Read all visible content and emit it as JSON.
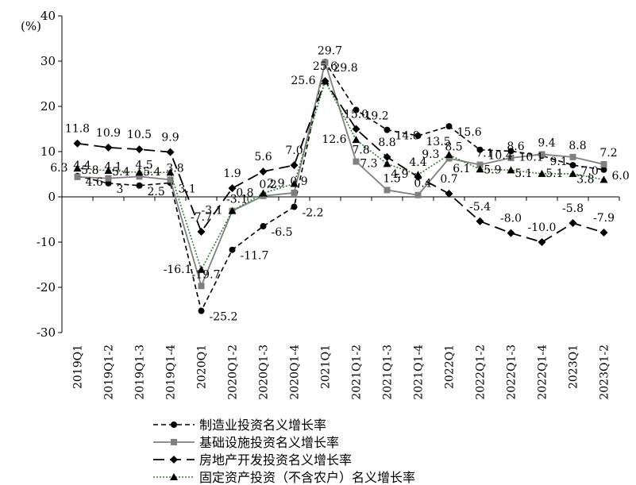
{
  "chart_data": {
    "type": "line",
    "title": "",
    "ylabel": "(%)",
    "xlabel": "",
    "ylim": [
      -30,
      40
    ],
    "yticks": [
      -30,
      -20,
      -10,
      0,
      10,
      20,
      30,
      40
    ],
    "grid": false,
    "legend_position": "bottom",
    "categories": [
      "2019Q1",
      "2019Q1-2",
      "2019Q1-3",
      "2019Q1-4",
      "2020Q1",
      "2020Q1-2",
      "2020Q1-3",
      "2020Q1-4",
      "2021Q1",
      "2021Q1-2",
      "2021Q1-3",
      "2021Q1-4",
      "2022Q1",
      "2022Q1-2",
      "2022Q1-3",
      "2022Q1-4",
      "2023Q1",
      "2023Q1-2"
    ],
    "series": [
      {
        "name": "制造业投资名义增长率",
        "style": "dashed-circle",
        "color": "#000000",
        "values": [
          4.6,
          3.0,
          2.5,
          3.1,
          -25.2,
          -11.7,
          -6.5,
          -2.2,
          29.8,
          19.2,
          14.8,
          13.5,
          15.6,
          10.4,
          10.1,
          9.1,
          7.0,
          6.0
        ],
        "labels": [
          "4.6",
          "3",
          "2.5",
          "3.1",
          "-25.2",
          "-11.7",
          "-6.5",
          "-2.2",
          "29.8",
          "19.2",
          "14.8",
          "13.5",
          "15.6",
          "10.4",
          "10.1",
          "9.1",
          "7.0",
          "6.0"
        ]
      },
      {
        "name": "基础设施投资名义增长率",
        "style": "solid-square",
        "color": "#808080",
        "values": [
          4.4,
          4.1,
          4.5,
          3.8,
          -19.7,
          -3.1,
          0.2,
          0.9,
          29.7,
          7.8,
          1.5,
          0.4,
          8.5,
          7.1,
          8.6,
          9.4,
          8.8,
          7.2
        ],
        "labels": [
          "4.4",
          "4.1",
          "4.5",
          "3.8",
          "-19.7",
          "-3.1",
          "0.2",
          "0.9",
          "29.7",
          "7.8",
          "1.5",
          "0.4",
          "8.5",
          "7.1",
          "8.6",
          "9.4",
          "8.8",
          "7.2"
        ]
      },
      {
        "name": "房地产开发投资名义增长率",
        "style": "longdash-diamond",
        "color": "#000000",
        "values": [
          11.8,
          10.9,
          10.5,
          9.9,
          -7.7,
          1.9,
          5.6,
          7.0,
          25.6,
          15.0,
          8.8,
          4.4,
          0.7,
          -5.4,
          -8.0,
          -10.0,
          -5.8,
          -7.9
        ],
        "labels": [
          "11.8",
          "10.9",
          "10.5",
          "9.9",
          "-7.7",
          "1.9",
          "5.6",
          "7.0",
          "25.6",
          "15.0",
          "8.8",
          "4.4",
          "0.7",
          "-5.4",
          "-8.0",
          "-10.0",
          "-5.8",
          "-7.9"
        ]
      },
      {
        "name": "固定资产投资（不含农户）名义增长率",
        "style": "dotted-triangle",
        "color": "#2e7d32",
        "values": [
          6.3,
          5.8,
          5.4,
          5.4,
          -16.1,
          -3.1,
          0.8,
          2.9,
          25.6,
          12.6,
          7.3,
          4.9,
          9.3,
          6.1,
          5.9,
          5.1,
          5.1,
          3.8
        ],
        "labels": [
          "6.3",
          "5.8",
          "5.4",
          "5.4",
          "-16.1",
          "-3.1",
          "0.8",
          "2.9",
          "25.6",
          "12.6",
          "7.3",
          "4.9",
          "9.3",
          "6.1",
          "5.9",
          "5.1",
          "5.1",
          "3.8"
        ]
      }
    ]
  }
}
